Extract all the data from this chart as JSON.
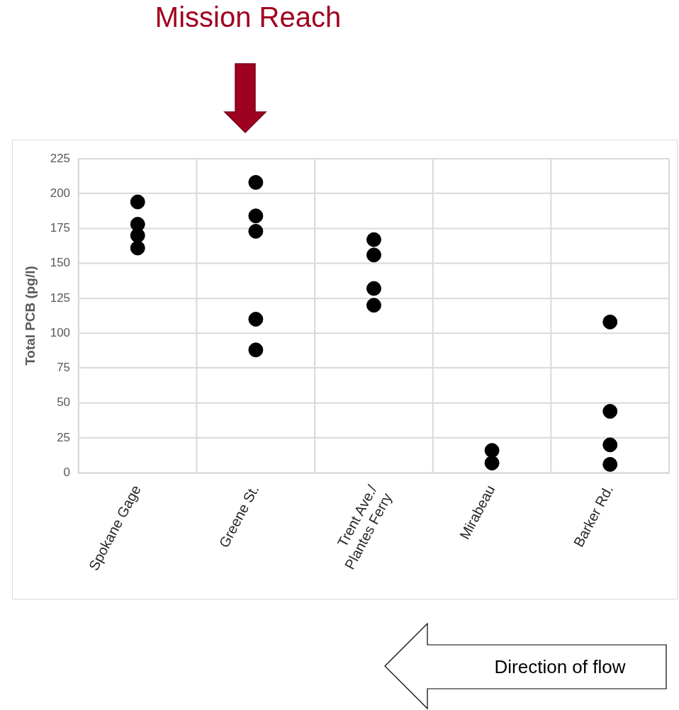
{
  "chart_data": {
    "type": "scatter",
    "ylabel": "Total PCB (pg/l)",
    "categories": [
      "Spokane Gage",
      "Greene St.",
      "Trent Ave./\nPlantes Ferry",
      "Mirabeau",
      "Barker Rd."
    ],
    "series": [
      {
        "color": "#000000",
        "values": [
          194,
          208,
          167,
          16,
          108
        ]
      },
      {
        "color": "#000000",
        "values": [
          178,
          184,
          156,
          7,
          44
        ]
      },
      {
        "color": "#000000",
        "values": [
          170,
          173,
          132,
          null,
          20
        ]
      },
      {
        "color": "#000000",
        "values": [
          161,
          110,
          120,
          null,
          6
        ]
      },
      {
        "color": "#000000",
        "values": [
          null,
          88,
          null,
          null,
          null
        ]
      }
    ],
    "ylim": [
      0,
      225
    ],
    "yticks": [
      0,
      25,
      50,
      75,
      100,
      125,
      150,
      175,
      200,
      225
    ],
    "grid": true,
    "legend": false,
    "marker": "circle",
    "annotations": [
      "Mission Reach",
      "Direction of flow"
    ]
  }
}
